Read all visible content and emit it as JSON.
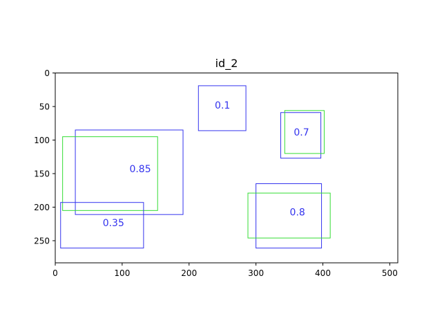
{
  "chart_data": {
    "type": "box-overlay",
    "title": "id_2",
    "xlim": [
      0,
      512
    ],
    "ylim": [
      0,
      283
    ],
    "y_inverted": true,
    "x_ticks": [
      0,
      100,
      200,
      300,
      400,
      500
    ],
    "y_ticks": [
      0,
      50,
      100,
      150,
      200,
      250
    ],
    "grid": false,
    "colors": {
      "blue": "#3333ee",
      "green": "#33dd33"
    },
    "boxes": [
      {
        "color": "blue",
        "x0": 214,
        "y0": 19,
        "x1": 285,
        "y1": 86,
        "label": "0.1",
        "label_x": 250,
        "label_y": 48
      },
      {
        "color": "blue",
        "x0": 337,
        "y0": 59,
        "x1": 397,
        "y1": 127,
        "label": "0.7",
        "label_x": 368,
        "label_y": 88
      },
      {
        "color": "green",
        "x0": 343,
        "y0": 56,
        "x1": 402,
        "y1": 120
      },
      {
        "color": "blue",
        "x0": 30,
        "y0": 85,
        "x1": 191,
        "y1": 211,
        "label": "0.85",
        "label_x": 127,
        "label_y": 143
      },
      {
        "color": "green",
        "x0": 11,
        "y0": 95,
        "x1": 153,
        "y1": 205
      },
      {
        "color": "blue",
        "x0": 8,
        "y0": 193,
        "x1": 132,
        "y1": 261,
        "label": "0.35",
        "label_x": 87,
        "label_y": 223
      },
      {
        "color": "blue",
        "x0": 300,
        "y0": 165,
        "x1": 398,
        "y1": 261,
        "label": "0.8",
        "label_x": 362,
        "label_y": 207
      },
      {
        "color": "green",
        "x0": 288,
        "y0": 179,
        "x1": 411,
        "y1": 246
      }
    ]
  }
}
